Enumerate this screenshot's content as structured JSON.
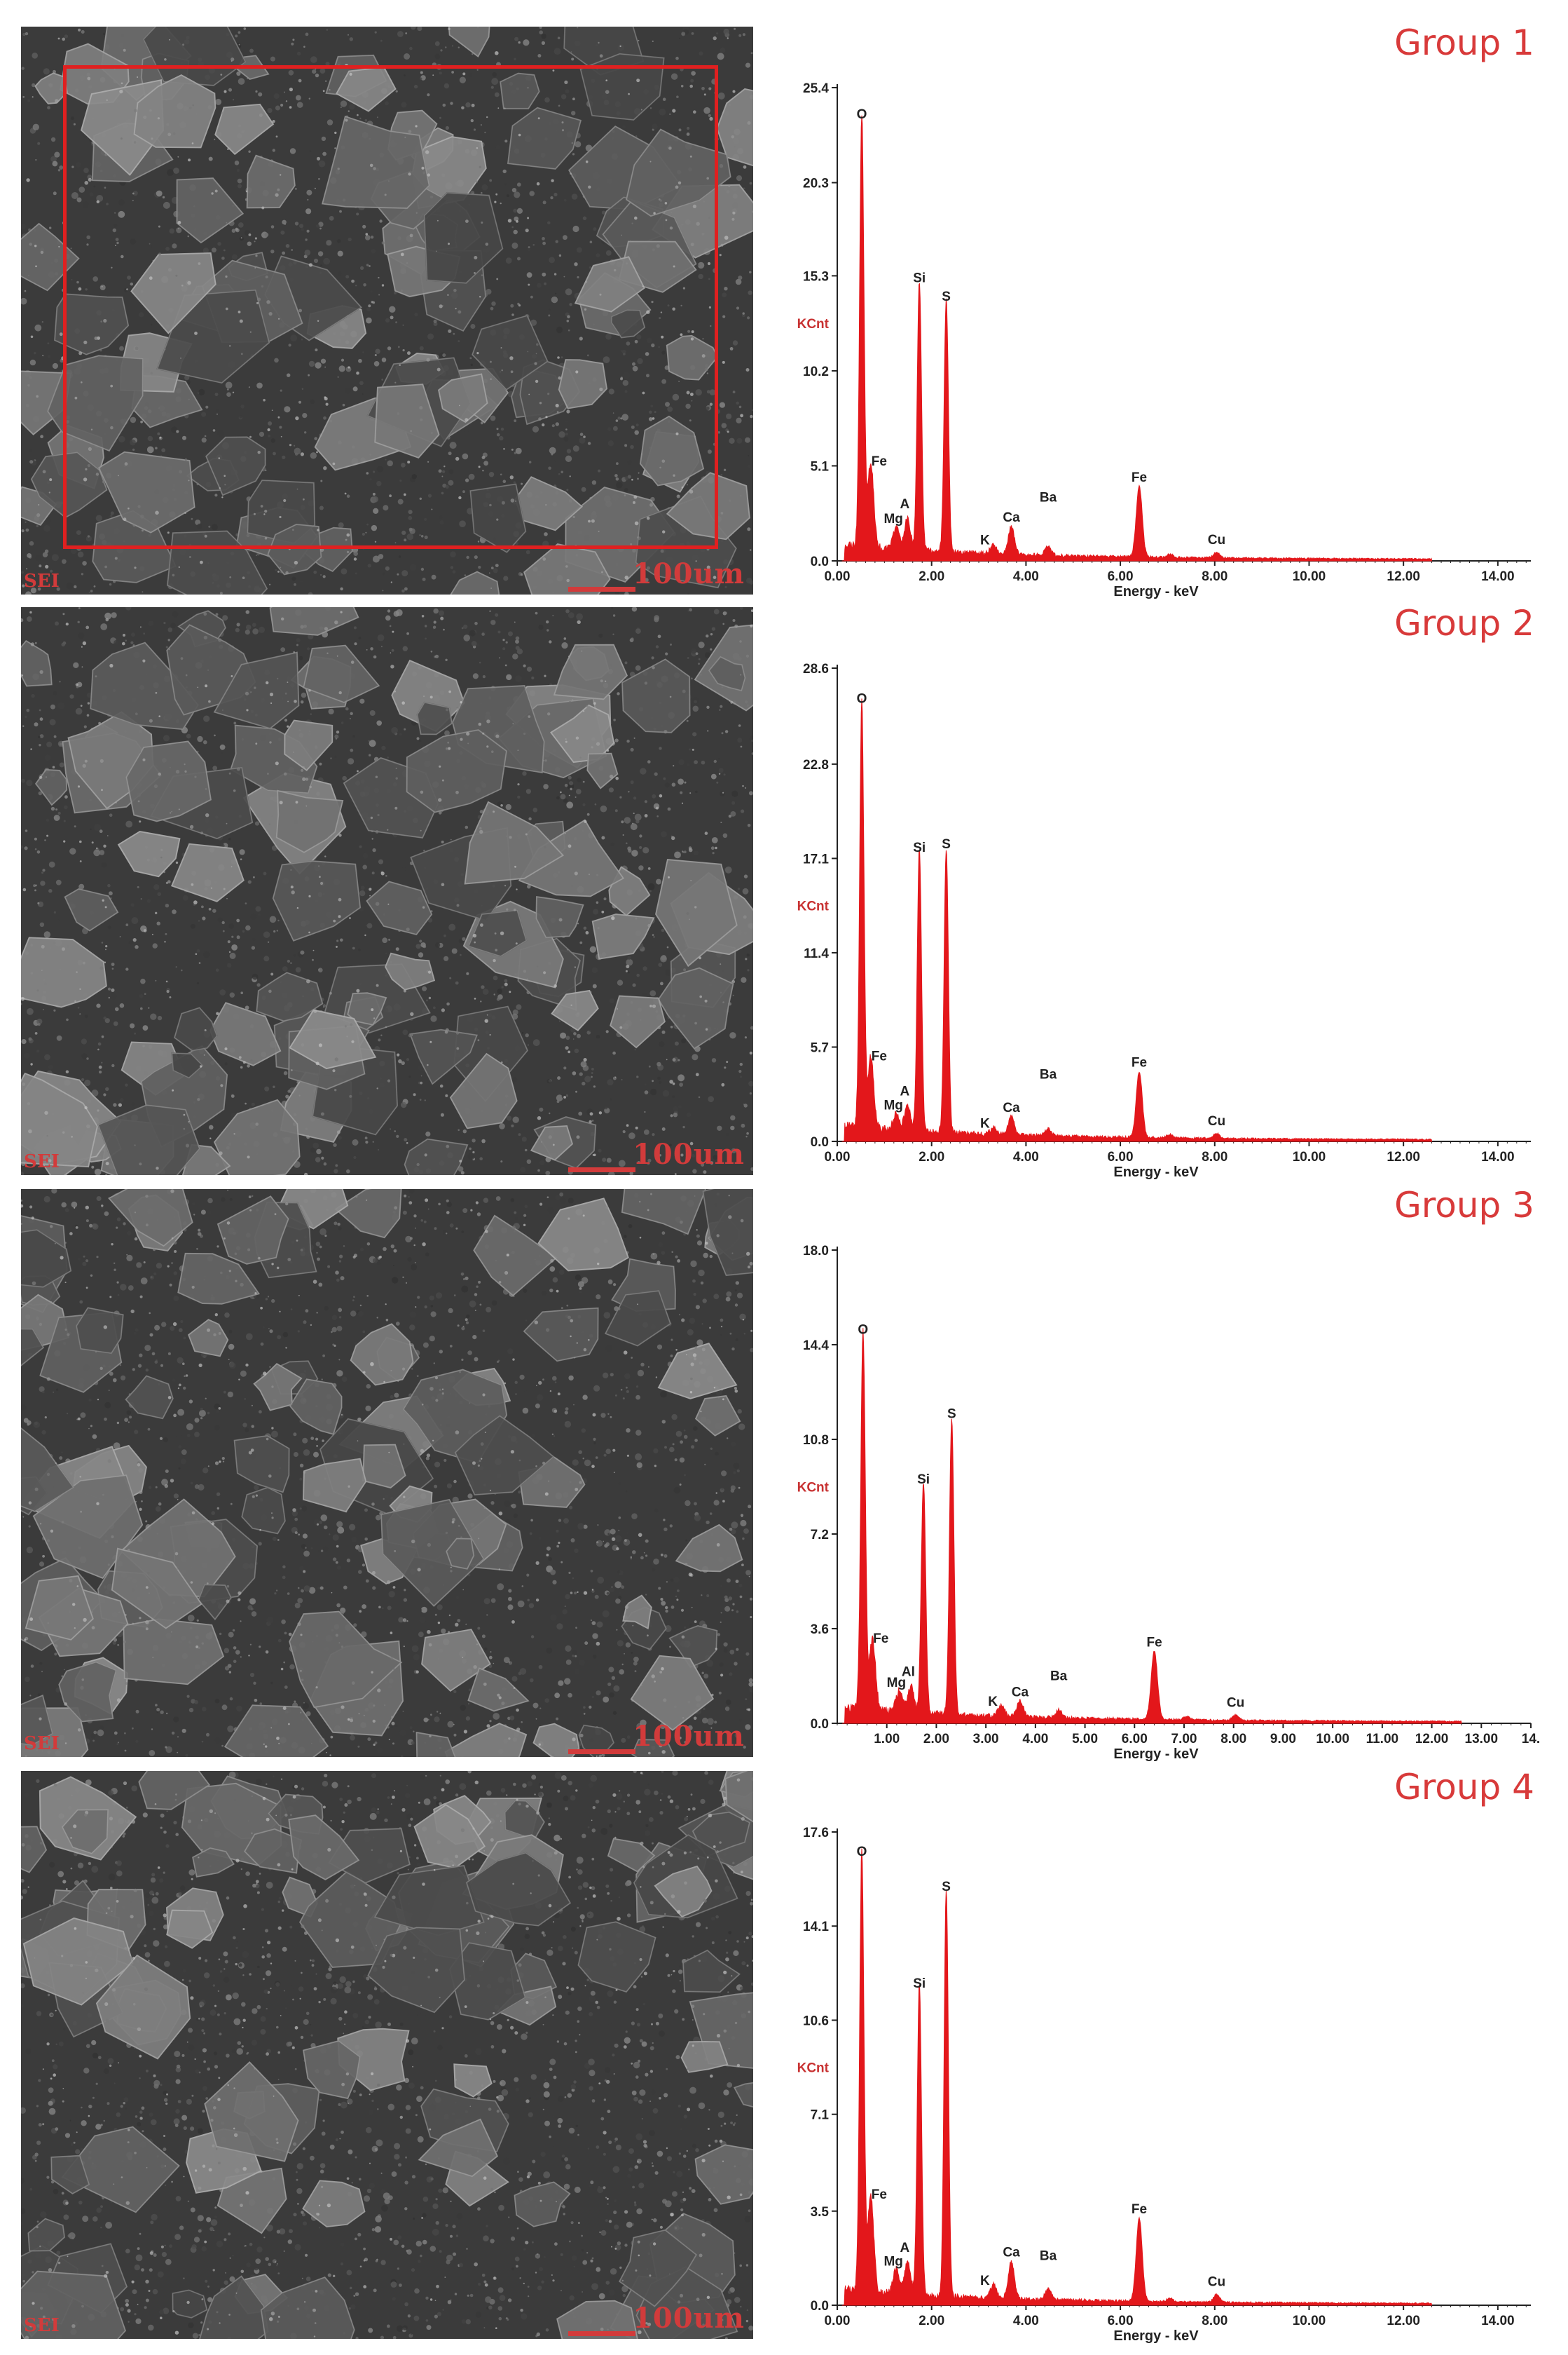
{
  "sem_common": {
    "detector_label": "SEI",
    "scale_label": "100um"
  },
  "chart_data": [
    {
      "type": "area",
      "group_title": "Group 1",
      "ylabel": "KCnt",
      "xlabel": "Energy - keV",
      "yticks": [
        "0.0",
        "5.1",
        "10.2",
        "15.3",
        "20.3",
        "25.4"
      ],
      "ylim": [
        0,
        25.4
      ],
      "xticks": [
        "0.00",
        "2.00",
        "4.00",
        "6.00",
        "8.00",
        "10.00",
        "12.00",
        "14.00"
      ],
      "xlim": [
        0,
        14.7
      ],
      "color": "#e3171b",
      "peaks": [
        {
          "label": "O",
          "x": 0.52,
          "y": 23.3
        },
        {
          "label": "Fe",
          "x": 0.71,
          "y": 4.6
        },
        {
          "label": "A",
          "x": 1.49,
          "y": 1.7
        },
        {
          "label": "Mg",
          "x": 1.25,
          "y": 1.2
        },
        {
          "label": "Si",
          "x": 1.74,
          "y": 14.5
        },
        {
          "label": "S",
          "x": 2.31,
          "y": 13.5
        },
        {
          "label": "K",
          "x": 3.31,
          "y": 0.5
        },
        {
          "label": "Ca",
          "x": 3.69,
          "y": 1.5
        },
        {
          "label": "Ba",
          "x": 4.47,
          "y": 0.5
        },
        {
          "label": "Fe",
          "x": 6.4,
          "y": 3.8
        },
        {
          "label": "Cu",
          "x": 8.04,
          "y": 0.3
        }
      ],
      "has_roi": true
    },
    {
      "type": "area",
      "group_title": "Group 2",
      "ylabel": "KCnt",
      "xlabel": "Energy - keV",
      "yticks": [
        "0.0",
        "5.7",
        "11.4",
        "17.1",
        "22.8",
        "28.6"
      ],
      "ylim": [
        0,
        28.6
      ],
      "xticks": [
        "0.00",
        "2.00",
        "4.00",
        "6.00",
        "8.00",
        "10.00",
        "12.00",
        "14.00"
      ],
      "xlim": [
        0,
        14.7
      ],
      "color": "#e3171b",
      "peaks": [
        {
          "label": "O",
          "x": 0.52,
          "y": 26.0
        },
        {
          "label": "Fe",
          "x": 0.71,
          "y": 4.3
        },
        {
          "label": "A",
          "x": 1.49,
          "y": 1.5
        },
        {
          "label": "Mg",
          "x": 1.25,
          "y": 1.0
        },
        {
          "label": "Si",
          "x": 1.74,
          "y": 17.0
        },
        {
          "label": "S",
          "x": 2.31,
          "y": 17.2
        },
        {
          "label": "K",
          "x": 3.31,
          "y": 0.4
        },
        {
          "label": "Ca",
          "x": 3.69,
          "y": 1.1
        },
        {
          "label": "Ba",
          "x": 4.47,
          "y": 0.4
        },
        {
          "label": "Fe",
          "x": 6.4,
          "y": 4.0
        },
        {
          "label": "Cu",
          "x": 8.04,
          "y": 0.3
        }
      ],
      "has_roi": false
    },
    {
      "type": "area",
      "group_title": "Group 3",
      "ylabel": "KCnt",
      "xlabel": "Energy - keV",
      "yticks": [
        "0.0",
        "3.6",
        "7.2",
        "10.8",
        "14.4",
        "18.0"
      ],
      "ylim": [
        0,
        18.0
      ],
      "xticks": [
        "1.00",
        "2.00",
        "3.00",
        "4.00",
        "5.00",
        "6.00",
        "7.00",
        "8.00",
        "9.00",
        "10.00",
        "11.00",
        "12.00",
        "13.00",
        "14."
      ],
      "xlim": [
        0,
        14.0
      ],
      "color": "#e3171b",
      "peaks": [
        {
          "label": "O",
          "x": 0.52,
          "y": 14.5
        },
        {
          "label": "Fe",
          "x": 0.71,
          "y": 2.7
        },
        {
          "label": "Al",
          "x": 1.49,
          "y": 1.0
        },
        {
          "label": "Mg",
          "x": 1.25,
          "y": 0.8
        },
        {
          "label": "Si",
          "x": 1.74,
          "y": 8.8
        },
        {
          "label": "S",
          "x": 2.31,
          "y": 11.3
        },
        {
          "label": "K",
          "x": 3.31,
          "y": 0.4
        },
        {
          "label": "Ca",
          "x": 3.69,
          "y": 0.6
        },
        {
          "label": "Ba",
          "x": 4.47,
          "y": 0.3
        },
        {
          "label": "Fe",
          "x": 6.4,
          "y": 2.6
        },
        {
          "label": "Cu",
          "x": 8.04,
          "y": 0.2
        }
      ],
      "has_roi": false
    },
    {
      "type": "area",
      "group_title": "Group 4",
      "ylabel": "KCnt",
      "xlabel": "Energy - keV",
      "yticks": [
        "0.0",
        "3.5",
        "7.1",
        "10.6",
        "14.1",
        "17.6"
      ],
      "ylim": [
        0,
        17.6
      ],
      "xticks": [
        "0.00",
        "2.00",
        "4.00",
        "6.00",
        "8.00",
        "10.00",
        "12.00",
        "14.00"
      ],
      "xlim": [
        0,
        14.7
      ],
      "color": "#e3171b",
      "peaks": [
        {
          "label": "O",
          "x": 0.52,
          "y": 16.4
        },
        {
          "label": "Fe",
          "x": 0.71,
          "y": 3.6
        },
        {
          "label": "A",
          "x": 1.49,
          "y": 1.2
        },
        {
          "label": "Mg",
          "x": 1.25,
          "y": 0.9
        },
        {
          "label": "Si",
          "x": 1.74,
          "y": 11.5
        },
        {
          "label": "S",
          "x": 2.31,
          "y": 15.1
        },
        {
          "label": "K",
          "x": 3.31,
          "y": 0.5
        },
        {
          "label": "Ca",
          "x": 3.69,
          "y": 1.4
        },
        {
          "label": "Ba",
          "x": 4.47,
          "y": 0.4
        },
        {
          "label": "Fe",
          "x": 6.4,
          "y": 3.1
        },
        {
          "label": "Cu",
          "x": 8.04,
          "y": 0.3
        }
      ],
      "has_roi": false
    }
  ]
}
